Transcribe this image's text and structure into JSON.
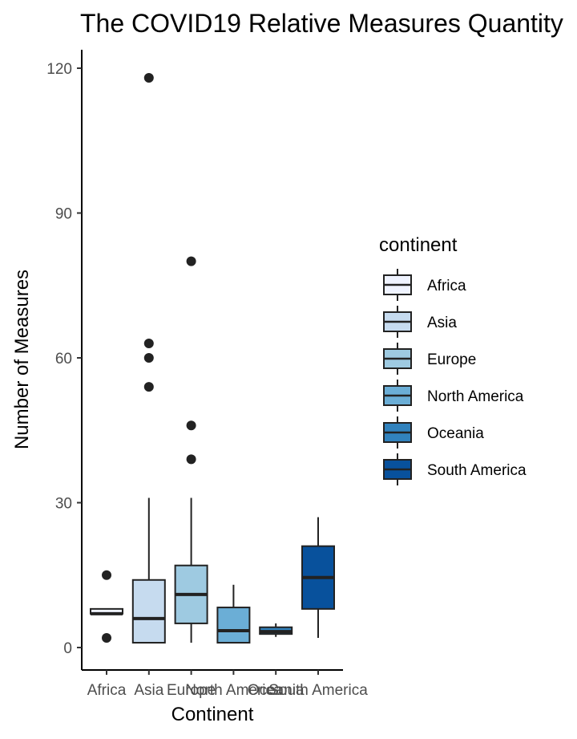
{
  "chart_data": {
    "type": "boxplot",
    "title": "The COVID19 Relative Measures Quantity",
    "xlabel": "Continent",
    "ylabel": "Number of Measures",
    "ylim": [
      -4.5,
      124
    ],
    "yticks": [
      0,
      30,
      60,
      90,
      120
    ],
    "grid": false,
    "legend_title": "continent",
    "legend_position": "right",
    "categories": [
      "Africa",
      "Asia",
      "Europe",
      "North America",
      "Oceania",
      "South America"
    ],
    "colors": [
      "#eff3ff",
      "#c6dbef",
      "#9ecae1",
      "#6baed6",
      "#3182bd",
      "#08519c"
    ],
    "boxes": [
      {
        "category": "Africa",
        "min": 7,
        "q1": 7,
        "median": 7,
        "q3": 8,
        "max": 8,
        "outliers": [
          15,
          2
        ]
      },
      {
        "category": "Asia",
        "min": 1,
        "q1": 1,
        "median": 6,
        "q3": 14,
        "max": 31,
        "outliers": [
          118,
          63,
          60,
          54
        ]
      },
      {
        "category": "Europe",
        "min": 1,
        "q1": 5,
        "median": 11,
        "q3": 17,
        "max": 31,
        "outliers": [
          80,
          46,
          39
        ]
      },
      {
        "category": "North America",
        "min": 1,
        "q1": 1,
        "median": 3.5,
        "q3": 8.3,
        "max": 13,
        "outliers": []
      },
      {
        "category": "Oceania",
        "min": 2.2,
        "q1": 2.8,
        "median": 3.3,
        "q3": 4.2,
        "max": 5,
        "outliers": []
      },
      {
        "category": "South America",
        "min": 2,
        "q1": 8,
        "median": 14.5,
        "q3": 21,
        "max": 27,
        "outliers": []
      }
    ]
  }
}
